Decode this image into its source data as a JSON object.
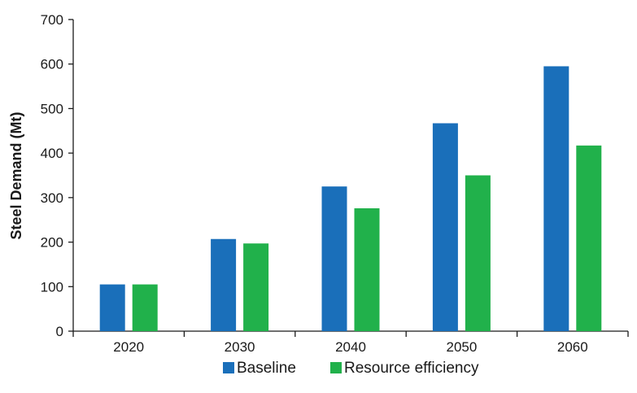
{
  "chart_data": {
    "type": "bar",
    "title": "",
    "xlabel": "",
    "ylabel": "Steel Demand (Mt)",
    "categories": [
      "2020",
      "2030",
      "2040",
      "2050",
      "2060"
    ],
    "series": [
      {
        "name": "Baseline",
        "color": "#1a6fba",
        "values": [
          105,
          207,
          325,
          467,
          595
        ]
      },
      {
        "name": "Resource efficiency",
        "color": "#21b14b",
        "values": [
          105,
          197,
          276,
          350,
          417
        ]
      }
    ],
    "ylim": [
      0,
      700
    ],
    "yticks": [
      0,
      100,
      200,
      300,
      400,
      500,
      600,
      700
    ],
    "grid": false,
    "legend_position": "bottom-center"
  }
}
